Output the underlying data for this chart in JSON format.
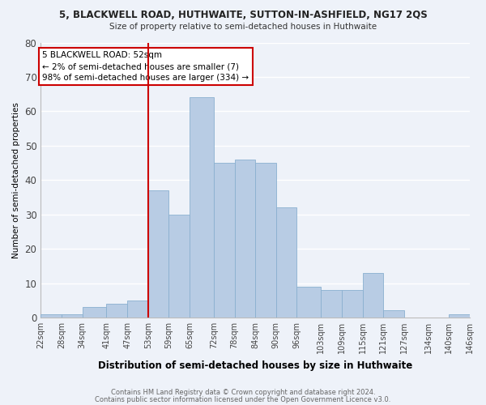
{
  "title": "5, BLACKWELL ROAD, HUTHWAITE, SUTTON-IN-ASHFIELD, NG17 2QS",
  "subtitle": "Size of property relative to semi-detached houses in Huthwaite",
  "xlabel": "Distribution of semi-detached houses by size in Huthwaite",
  "ylabel": "Number of semi-detached properties",
  "bar_color": "#b8cce4",
  "bar_edge_color": "#8ab0d0",
  "vline_x": 53,
  "vline_color": "#cc0000",
  "annotation_title": "5 BLACKWELL ROAD: 52sqm",
  "annotation_line1": "← 2% of semi-detached houses are smaller (7)",
  "annotation_line2": "98% of semi-detached houses are larger (334) →",
  "bin_labels": [
    "22sqm",
    "28sqm",
    "34sqm",
    "41sqm",
    "47sqm",
    "53sqm",
    "59sqm",
    "65sqm",
    "72sqm",
    "78sqm",
    "84sqm",
    "90sqm",
    "96sqm",
    "103sqm",
    "109sqm",
    "115sqm",
    "121sqm",
    "127sqm",
    "134sqm",
    "140sqm",
    "146sqm"
  ],
  "bin_edges": [
    22,
    28,
    34,
    41,
    47,
    53,
    59,
    65,
    72,
    78,
    84,
    90,
    96,
    103,
    109,
    115,
    121,
    127,
    134,
    140,
    146
  ],
  "counts": [
    1,
    1,
    3,
    4,
    5,
    37,
    30,
    64,
    45,
    46,
    45,
    32,
    9,
    8,
    8,
    13,
    2,
    0,
    0,
    1
  ],
  "ylim": [
    0,
    80
  ],
  "yticks": [
    0,
    10,
    20,
    30,
    40,
    50,
    60,
    70,
    80
  ],
  "background_color": "#eef2f9",
  "grid_color": "#ffffff",
  "footer1": "Contains HM Land Registry data © Crown copyright and database right 2024.",
  "footer2": "Contains public sector information licensed under the Open Government Licence v3.0."
}
